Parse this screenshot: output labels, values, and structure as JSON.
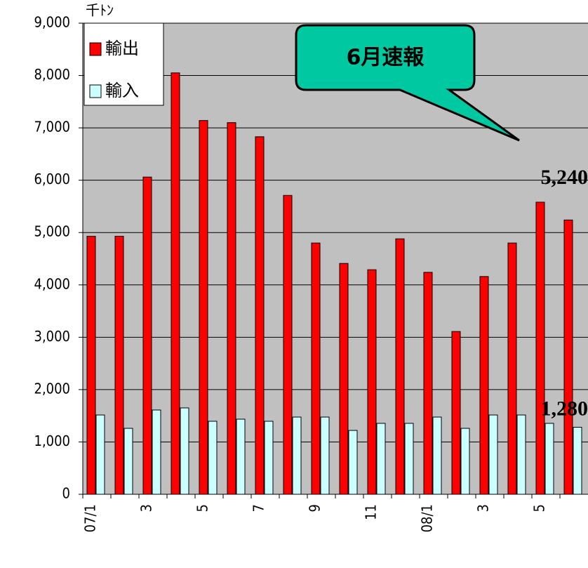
{
  "chart_data": {
    "type": "bar",
    "y_unit": "千ﾄﾝ",
    "annotation": "6月速報",
    "categories": [
      "07/1",
      null,
      "3",
      null,
      "5",
      null,
      "7",
      null,
      "9",
      null,
      "11",
      null,
      "08/1",
      null,
      "3",
      null,
      "5",
      null
    ],
    "series": [
      {
        "name": "輸出",
        "color": "#ff0000",
        "values": [
          4930,
          4930,
          6060,
          8050,
          7140,
          7100,
          6830,
          5710,
          4800,
          4410,
          4290,
          4880,
          4240,
          3110,
          4160,
          4800,
          5580,
          5240
        ],
        "value_labels": [
          null,
          null,
          null,
          null,
          null,
          null,
          null,
          null,
          null,
          null,
          null,
          null,
          null,
          null,
          null,
          null,
          null,
          "5,240"
        ]
      },
      {
        "name": "輸入",
        "color": "#ccffff",
        "values": [
          1515,
          1260,
          1610,
          1650,
          1395,
          1435,
          1395,
          1475,
          1475,
          1220,
          1355,
          1355,
          1475,
          1260,
          1515,
          1515,
          1355,
          1280
        ],
        "value_labels": [
          null,
          null,
          null,
          null,
          null,
          null,
          null,
          null,
          null,
          null,
          null,
          null,
          null,
          null,
          null,
          null,
          null,
          "1,280"
        ]
      }
    ],
    "ylim": [
      0,
      9000
    ],
    "yticks": [
      0,
      {
        "value": 1000,
        "label": "1,000"
      },
      {
        "value": 2000,
        "label": "2,000"
      },
      {
        "value": 3000,
        "label": "3,000"
      },
      {
        "value": 4000,
        "label": "4,000"
      },
      {
        "value": 5000,
        "label": "5,000"
      },
      {
        "value": 6000,
        "label": "6,000"
      },
      {
        "value": 7000,
        "label": "7,000"
      },
      {
        "value": 8000,
        "label": "8,000"
      },
      {
        "value": 9000,
        "label": "9,000"
      }
    ],
    "grid": true,
    "legend": "upper left",
    "background": "#c0c0c0"
  }
}
